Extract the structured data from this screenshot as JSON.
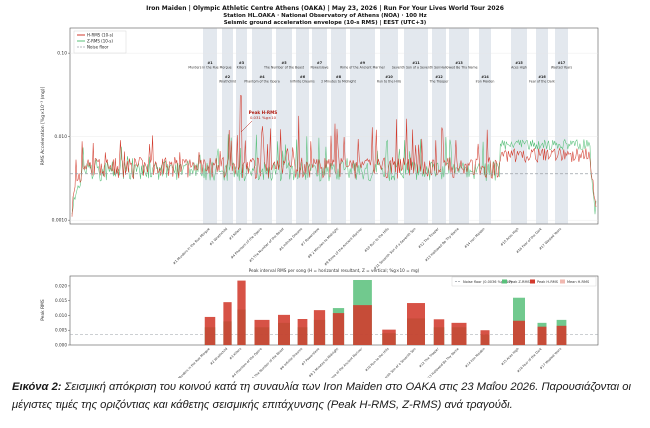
{
  "figure": {
    "title_line1": "Iron Maiden  |  Olympic Athletic Centre Athens (OAKA)  |  May 23, 2026  |  Run For Your Lives World Tour 2026",
    "title_line2": "Station HL.OAKA · National Observatory of Athens (NOA) · 100 Hz",
    "title_line3": "Seismic ground acceleration envelope (10-s RMS)  |  EEST (UTC+3)",
    "caption_label": "Εικόνα 2:",
    "caption_text": "Σεισμική απόκριση του κοινού κατά τη συναυλία των Iron Maiden στο ΟΑΚΑ στις 23 Μαΐου 2026. Παρουσιάζονται οι μέγιστες τιμές της οριζόντιας και κάθετης σεισμικής επιτάχυνσης (Peak H-RMS, Z-RMS) ανά τραγούδι."
  },
  "chart_data": [
    {
      "type": "line",
      "ylabel": "RMS Acceleration  [%g×10⁻³ (mg)]",
      "yscale": "log",
      "yticks": [
        "0.10",
        "0.010",
        "0.0010"
      ],
      "legend_position": "top-left",
      "legend": [
        "H-RMS (10-s)",
        "Z-RMS (10-s)",
        "Noise floor"
      ],
      "colors": {
        "h": "#d23a2c",
        "z": "#58c07a",
        "noise": "#9aa0a6",
        "band": "#d9e0e8"
      },
      "annotations": {
        "peak_title": "Peak H-RMS",
        "peak_value": "0.031 %g×10"
      },
      "songs": [
        {
          "num": "#1",
          "title": "Murders in the Rue Morgue"
        },
        {
          "num": "#2",
          "title": "Wrathchild"
        },
        {
          "num": "#3",
          "title": "Killers"
        },
        {
          "num": "#4",
          "title": "Phantom of the Opera"
        },
        {
          "num": "#5",
          "title": "The Number of the Beast"
        },
        {
          "num": "#6",
          "title": "Infinite Dreams"
        },
        {
          "num": "#7",
          "title": "Powerslave"
        },
        {
          "num": "#8",
          "title": "2 Minutes to Midnight"
        },
        {
          "num": "#9",
          "title": "Rime of the Ancient Mariner"
        },
        {
          "num": "#10",
          "title": "Run to the Hills"
        },
        {
          "num": "#11",
          "title": "Seventh Son of a Seventh Son"
        },
        {
          "num": "#12",
          "title": "The Trooper"
        },
        {
          "num": "#13",
          "title": "Hallowed Be Thy Name"
        },
        {
          "num": "#14",
          "title": "Iron Maiden"
        },
        {
          "num": "#15",
          "title": "Aces High"
        },
        {
          "num": "#16",
          "title": "Fear of the Dark"
        },
        {
          "num": "#17",
          "title": "Wasted Years"
        }
      ]
    },
    {
      "type": "bar",
      "title": "Peak interval RMS per song  (H = horizontal resultant, Z = vertical; %g×10 = mg)",
      "ylabel": "Peak RMS",
      "ylim": [
        0,
        0.022
      ],
      "yticks": [
        "0.000",
        "0.005",
        "0.010",
        "0.015",
        "0.020"
      ],
      "legend": [
        "Noise floor  (0.0036 %g×10)",
        "Peak Z-RMS",
        "Peak H-RMS",
        "Mean H-RMS"
      ],
      "noise_floor": 0.0036,
      "categories": [
        "Murders in the Rue Morgue",
        "Wrathchild",
        "Killers",
        "Phantom of the Opera",
        "The Number of the Beast",
        "Infinite Dreams",
        "Powerslave",
        "2 Minutes to Midnight",
        "Rime of the Ancient Mariner",
        "Run to the Hills",
        "Seventh Son of a Seventh Son",
        "The Trooper",
        "Hallowed Be Thy Name",
        "Iron Maiden",
        "Aces High",
        "Fear of the Dark",
        "Wasted Years"
      ],
      "series": [
        {
          "name": "Peak H-RMS",
          "values": [
            0.0095,
            0.0145,
            0.0218,
            0.0085,
            0.0102,
            0.0088,
            0.0118,
            0.0108,
            0.0135,
            0.0052,
            0.0142,
            0.0087,
            0.0075,
            0.005,
            0.0082,
            0.0062,
            0.0065
          ]
        },
        {
          "name": "Peak Z-RMS",
          "values": [
            0.006,
            0.008,
            0.012,
            0.006,
            0.0075,
            0.006,
            0.0085,
            0.0125,
            0.022,
            0.004,
            0.009,
            0.006,
            0.006,
            0.0035,
            0.016,
            0.0075,
            0.0085
          ]
        }
      ]
    }
  ]
}
